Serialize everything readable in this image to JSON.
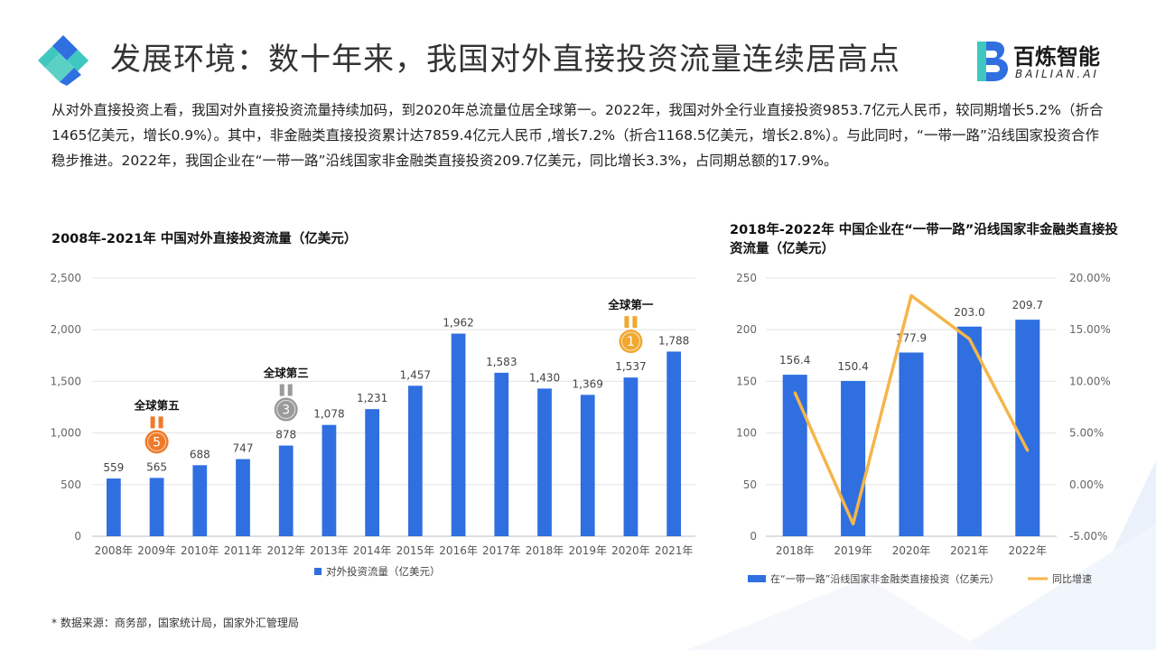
{
  "header": {
    "title": "发展环境：数十年来，我国对外直接投资流量连续居高点",
    "brand_name": "百炼智能",
    "brand_sub": "BAILIAN.AI"
  },
  "intro_text": "从对外直接投资上看，我国对外直接投资流量持续加码，到2020年总流量位居全球第一。2022年，我国对外全行业直接投资9853.7亿元人民币，较同期增长5.2%（折合1465亿美元，增长0.9%）。其中，非金融类直接投资累计达7859.4亿元人民币 ,增长7.2%（折合1168.5亿美元，增长2.8%）。与此同时，“一带一路”沿线国家投资合作稳步推进。2022年，我国企业在“一带一路”沿线国家非金融类直接投资209.7亿美元，同比增长3.3%，占同期总额的17.9%。",
  "colors": {
    "bar": "#2f6fe0",
    "line": "#f5b54a",
    "gold": "#f0a830",
    "bronze": "#ef7a2a",
    "silver": "#9a9a9a",
    "deco": "#e6eef9"
  },
  "chart_data": [
    {
      "type": "bar",
      "title": "2008年-2021年 中国对外直接投资流量（亿美元）",
      "categories": [
        "2008年",
        "2009年",
        "2010年",
        "2011年",
        "2012年",
        "2013年",
        "2014年",
        "2015年",
        "2016年",
        "2017年",
        "2018年",
        "2019年",
        "2020年",
        "2021年"
      ],
      "series": [
        {
          "name": "对外投资流量（亿美元）",
          "values": [
            559,
            565,
            688,
            747,
            878,
            1078,
            1231,
            1457,
            1962,
            1583,
            1430,
            1369,
            1537,
            1788
          ]
        }
      ],
      "data_labels": [
        "559",
        "565",
        "688",
        "747",
        "878",
        "1,078",
        "1,231",
        "1,457",
        "1,962",
        "1,583",
        "1,430",
        "1,369",
        "1,537",
        "1,788"
      ],
      "yticks": [
        "0",
        "500",
        "1,000",
        "1,500",
        "2,000",
        "2,500"
      ],
      "ylim": [
        0,
        2500
      ],
      "grid": true,
      "legend": "bottom",
      "annotations": [
        {
          "category": "2009年",
          "label": "全球第五",
          "rank": "5",
          "medal": "bronze"
        },
        {
          "category": "2012年",
          "label": "全球第三",
          "rank": "3",
          "medal": "silver"
        },
        {
          "category": "2020年",
          "label": "全球第一",
          "rank": "1",
          "medal": "gold"
        }
      ]
    },
    {
      "type": "bar+line",
      "title": "2018年-2022年 中国企业在“一带一路”沿线国家非金融类直接投资流量（亿美元）",
      "categories": [
        "2018年",
        "2019年",
        "2020年",
        "2021年",
        "2022年"
      ],
      "series": [
        {
          "name": "在“一带一路”沿线国家非金融类直接投资（亿美元）",
          "type": "bar",
          "axis": "left",
          "values": [
            156.4,
            150.4,
            177.9,
            203.0,
            209.7
          ]
        },
        {
          "name": "同比增速",
          "type": "line",
          "axis": "right",
          "values": [
            8.9,
            -3.8,
            18.3,
            14.1,
            3.3
          ]
        }
      ],
      "data_labels": [
        "156.4",
        "150.4",
        "177.9",
        "203.0",
        "209.7"
      ],
      "yticks_left": [
        "0",
        "50",
        "100",
        "150",
        "200",
        "250"
      ],
      "yticks_right": [
        "-5.00%",
        "0.00%",
        "5.00%",
        "10.00%",
        "15.00%",
        "20.00%"
      ],
      "ylim_left": [
        0,
        250
      ],
      "ylim_right": [
        -5,
        20
      ],
      "grid": true,
      "legend": "bottom"
    }
  ],
  "source": "* 数据来源：商务部，国家统计局，国家外汇管理局"
}
